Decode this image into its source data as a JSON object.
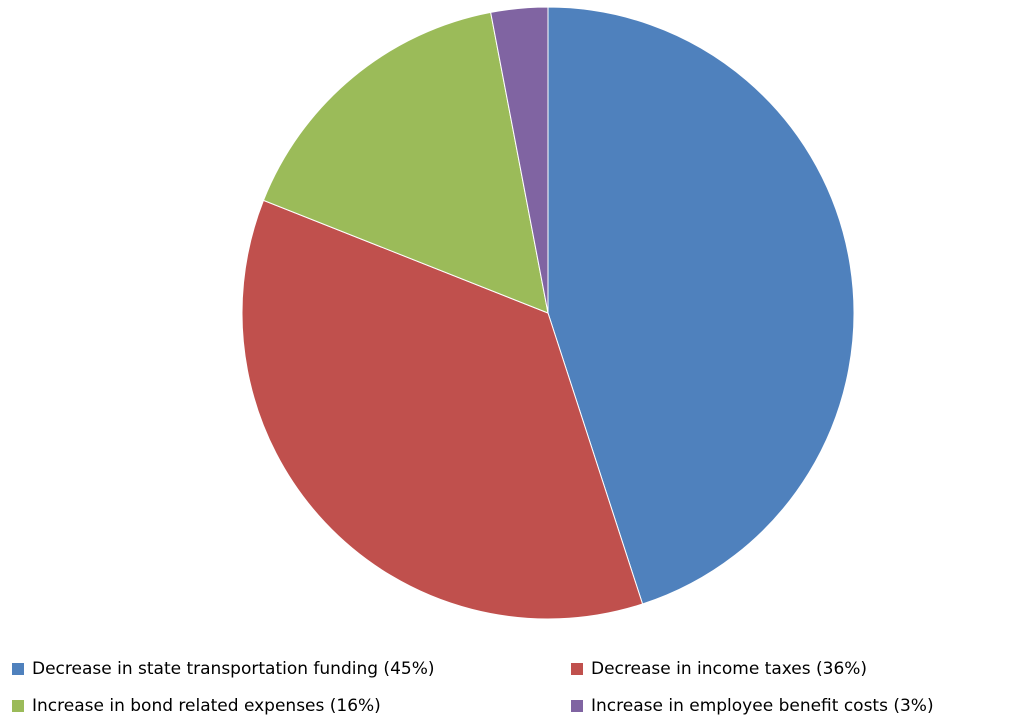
{
  "chart_data": {
    "type": "pie",
    "categories": [
      "Decrease in state transportation funding (45%)",
      "Decrease in income taxes (36%)",
      "Increase in bond related expenses (16%)",
      "Increase in employee benefit costs (3%)"
    ],
    "values": [
      45,
      36,
      16,
      3
    ],
    "colors": [
      "#4f81bd",
      "#c0504d",
      "#9bbb59",
      "#8064a2"
    ],
    "legend": "bottom"
  }
}
